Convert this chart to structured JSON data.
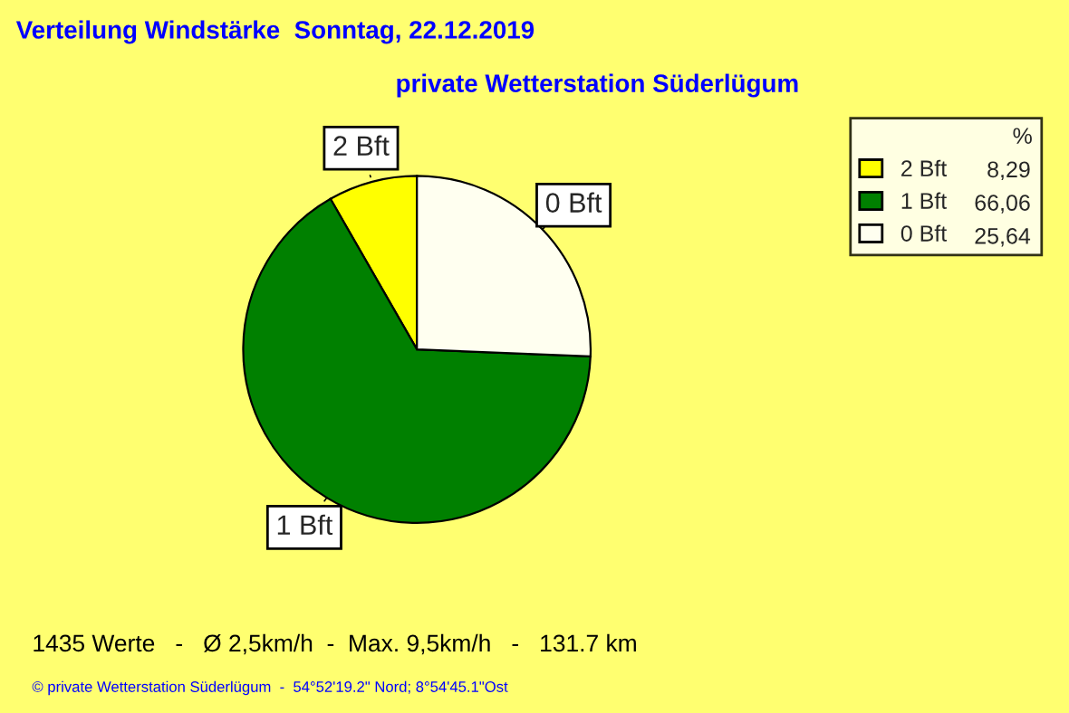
{
  "chart_data": {
    "type": "pie",
    "title": "Verteilung Windstärke  Sonntag, 22.12.2019",
    "subtitle": "private Wetterstation Süderlügum",
    "categories": [
      "2 Bft",
      "1 Bft",
      "0 Bft"
    ],
    "values": [
      8.29,
      66.06,
      25.64
    ],
    "value_labels": [
      "8,29",
      "66,06",
      "25,64"
    ],
    "colors": [
      "#ffff00",
      "#008000",
      "#fffff0"
    ],
    "legend_title": "%",
    "legend": "top right",
    "annotations": [
      "1435 Werte   -   Ø 2,5km/h  -  Max. 9,5km/h   -   131.7 km",
      "© private Wetterstation Süderlügum  -  54°52'19.2\" Nord; 8°54'45.1\"Ost"
    ]
  }
}
